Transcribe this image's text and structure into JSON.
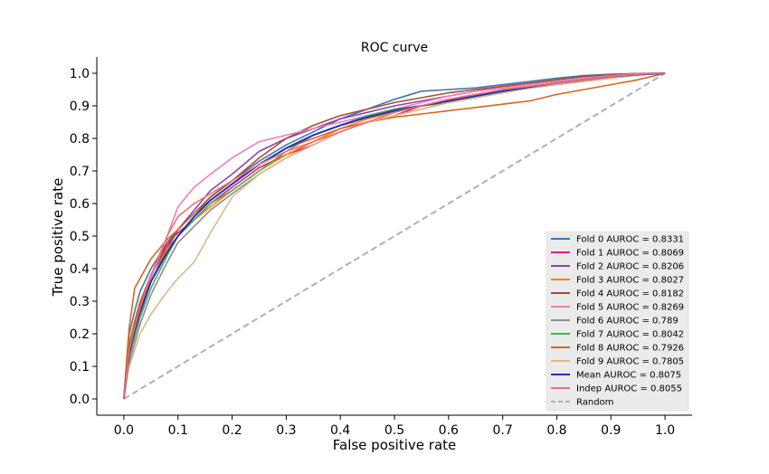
{
  "chart_data": {
    "type": "line",
    "title": "ROC curve",
    "xlabel": "False positive rate",
    "ylabel": "True positive rate",
    "xlim": [
      -0.05,
      1.05
    ],
    "ylim": [
      -0.05,
      1.05
    ],
    "xticks": [
      "0.0",
      "0.1",
      "0.2",
      "0.3",
      "0.4",
      "0.5",
      "0.6",
      "0.7",
      "0.8",
      "0.9",
      "1.0"
    ],
    "yticks": [
      "0.0",
      "0.1",
      "0.2",
      "0.3",
      "0.4",
      "0.5",
      "0.6",
      "0.7",
      "0.8",
      "0.9",
      "1.0"
    ],
    "grid": false,
    "legend_position": "lower-right",
    "series": [
      {
        "name": "Fold 0 AUROC = 0.8331",
        "color": "#3b78b0",
        "dashed": false,
        "x": [
          0,
          0.005,
          0.01,
          0.02,
          0.03,
          0.05,
          0.08,
          0.1,
          0.13,
          0.16,
          0.2,
          0.25,
          0.3,
          0.35,
          0.4,
          0.45,
          0.5,
          0.55,
          0.6,
          0.65,
          0.7,
          0.75,
          0.8,
          0.85,
          0.9,
          0.95,
          1.0
        ],
        "y": [
          0,
          0.1,
          0.2,
          0.27,
          0.33,
          0.4,
          0.48,
          0.52,
          0.57,
          0.62,
          0.67,
          0.73,
          0.78,
          0.82,
          0.86,
          0.89,
          0.92,
          0.945,
          0.95,
          0.955,
          0.965,
          0.975,
          0.985,
          0.993,
          0.997,
          0.999,
          1.0
        ]
      },
      {
        "name": "Fold 1 AUROC = 0.8069",
        "color": "#e6197d",
        "dashed": false,
        "x": [
          0,
          0.005,
          0.01,
          0.02,
          0.03,
          0.05,
          0.08,
          0.1,
          0.13,
          0.16,
          0.2,
          0.25,
          0.3,
          0.35,
          0.4,
          0.45,
          0.5,
          0.55,
          0.6,
          0.65,
          0.7,
          0.75,
          0.8,
          0.85,
          0.9,
          0.95,
          1.0
        ],
        "y": [
          0,
          0.09,
          0.15,
          0.22,
          0.28,
          0.38,
          0.48,
          0.51,
          0.55,
          0.6,
          0.65,
          0.71,
          0.75,
          0.78,
          0.82,
          0.85,
          0.87,
          0.9,
          0.92,
          0.935,
          0.95,
          0.96,
          0.97,
          0.98,
          0.99,
          0.997,
          1.0
        ]
      },
      {
        "name": "Fold 2 AUROC = 0.8206",
        "color": "#8e44ad",
        "dashed": false,
        "x": [
          0,
          0.005,
          0.01,
          0.02,
          0.03,
          0.05,
          0.08,
          0.1,
          0.13,
          0.16,
          0.2,
          0.25,
          0.3,
          0.35,
          0.4,
          0.45,
          0.5,
          0.55,
          0.6,
          0.65,
          0.7,
          0.75,
          0.8,
          0.85,
          0.9,
          0.95,
          1.0
        ],
        "y": [
          0,
          0.08,
          0.14,
          0.2,
          0.26,
          0.36,
          0.46,
          0.52,
          0.58,
          0.64,
          0.69,
          0.76,
          0.8,
          0.83,
          0.86,
          0.88,
          0.9,
          0.915,
          0.93,
          0.945,
          0.96,
          0.97,
          0.98,
          0.99,
          0.995,
          0.999,
          1.0
        ]
      },
      {
        "name": "Fold 3 AUROC = 0.8027",
        "color": "#ff7f0e",
        "dashed": false,
        "x": [
          0,
          0.005,
          0.01,
          0.02,
          0.03,
          0.05,
          0.08,
          0.1,
          0.13,
          0.16,
          0.2,
          0.25,
          0.3,
          0.35,
          0.4,
          0.45,
          0.5,
          0.55,
          0.6,
          0.65,
          0.7,
          0.75,
          0.8,
          0.85,
          0.9,
          0.95,
          1.0
        ],
        "y": [
          0,
          0.1,
          0.17,
          0.24,
          0.3,
          0.38,
          0.46,
          0.5,
          0.55,
          0.59,
          0.64,
          0.7,
          0.75,
          0.79,
          0.83,
          0.86,
          0.88,
          0.9,
          0.92,
          0.935,
          0.95,
          0.96,
          0.97,
          0.98,
          0.99,
          0.997,
          1.0
        ]
      },
      {
        "name": "Fold 4 AUROC = 0.8182",
        "color": "#a0522d",
        "dashed": false,
        "x": [
          0,
          0.005,
          0.01,
          0.02,
          0.03,
          0.05,
          0.08,
          0.1,
          0.13,
          0.16,
          0.2,
          0.25,
          0.3,
          0.35,
          0.4,
          0.45,
          0.5,
          0.55,
          0.6,
          0.65,
          0.7,
          0.75,
          0.8,
          0.85,
          0.9,
          0.95,
          1.0
        ],
        "y": [
          0,
          0.09,
          0.16,
          0.23,
          0.29,
          0.38,
          0.47,
          0.52,
          0.57,
          0.62,
          0.67,
          0.74,
          0.8,
          0.84,
          0.87,
          0.89,
          0.91,
          0.925,
          0.94,
          0.95,
          0.96,
          0.97,
          0.98,
          0.99,
          0.995,
          0.999,
          1.0
        ]
      },
      {
        "name": "Fold 5 AUROC = 0.8269",
        "color": "#f07cc4",
        "dashed": false,
        "x": [
          0,
          0.005,
          0.01,
          0.02,
          0.03,
          0.05,
          0.08,
          0.1,
          0.13,
          0.16,
          0.2,
          0.25,
          0.3,
          0.35,
          0.4,
          0.45,
          0.5,
          0.55,
          0.6,
          0.65,
          0.7,
          0.75,
          0.8,
          0.85,
          0.9,
          0.95,
          1.0
        ],
        "y": [
          0,
          0.07,
          0.13,
          0.2,
          0.27,
          0.37,
          0.5,
          0.59,
          0.65,
          0.69,
          0.74,
          0.79,
          0.81,
          0.83,
          0.85,
          0.87,
          0.89,
          0.91,
          0.93,
          0.945,
          0.955,
          0.965,
          0.975,
          0.985,
          0.993,
          0.998,
          1.0
        ]
      },
      {
        "name": "Fold 6 AUROC = 0.789",
        "color": "#8c8c8c",
        "dashed": false,
        "x": [
          0,
          0.005,
          0.01,
          0.02,
          0.03,
          0.05,
          0.08,
          0.1,
          0.13,
          0.16,
          0.2,
          0.25,
          0.3,
          0.35,
          0.4,
          0.45,
          0.5,
          0.55,
          0.6,
          0.65,
          0.7,
          0.75,
          0.8,
          0.85,
          0.9,
          0.95,
          1.0
        ],
        "y": [
          0,
          0.06,
          0.11,
          0.17,
          0.23,
          0.32,
          0.42,
          0.48,
          0.53,
          0.58,
          0.63,
          0.69,
          0.74,
          0.78,
          0.82,
          0.85,
          0.87,
          0.89,
          0.91,
          0.925,
          0.94,
          0.955,
          0.965,
          0.975,
          0.985,
          0.995,
          1.0
        ]
      },
      {
        "name": "Fold 7 AUROC = 0.8042",
        "color": "#4caf50",
        "dashed": false,
        "x": [
          0,
          0.005,
          0.01,
          0.02,
          0.03,
          0.05,
          0.08,
          0.1,
          0.13,
          0.16,
          0.2,
          0.25,
          0.3,
          0.35,
          0.4,
          0.45,
          0.5,
          0.55,
          0.6,
          0.65,
          0.7,
          0.75,
          0.8,
          0.85,
          0.9,
          0.95,
          1.0
        ],
        "y": [
          0,
          0.07,
          0.13,
          0.19,
          0.25,
          0.34,
          0.44,
          0.5,
          0.55,
          0.6,
          0.64,
          0.7,
          0.76,
          0.81,
          0.84,
          0.87,
          0.89,
          0.9,
          0.91,
          0.925,
          0.94,
          0.955,
          0.965,
          0.975,
          0.985,
          0.995,
          1.0
        ]
      },
      {
        "name": "Fold 8 AUROC = 0.7926",
        "color": "#d2691e",
        "dashed": false,
        "x": [
          0,
          0.005,
          0.01,
          0.02,
          0.03,
          0.05,
          0.08,
          0.1,
          0.13,
          0.16,
          0.2,
          0.25,
          0.3,
          0.35,
          0.4,
          0.45,
          0.5,
          0.55,
          0.6,
          0.65,
          0.7,
          0.75,
          0.8,
          0.85,
          0.9,
          0.95,
          1.0
        ],
        "y": [
          0,
          0.12,
          0.22,
          0.34,
          0.37,
          0.43,
          0.49,
          0.52,
          0.57,
          0.61,
          0.66,
          0.72,
          0.77,
          0.8,
          0.83,
          0.85,
          0.865,
          0.875,
          0.885,
          0.895,
          0.905,
          0.915,
          0.935,
          0.95,
          0.965,
          0.98,
          1.0
        ]
      },
      {
        "name": "Fold 9 AUROC = 0.7805",
        "color": "#deb887",
        "dashed": false,
        "x": [
          0,
          0.005,
          0.01,
          0.02,
          0.03,
          0.05,
          0.08,
          0.1,
          0.13,
          0.16,
          0.2,
          0.25,
          0.3,
          0.35,
          0.4,
          0.45,
          0.5,
          0.55,
          0.6,
          0.65,
          0.7,
          0.75,
          0.8,
          0.85,
          0.9,
          0.95,
          1.0
        ],
        "y": [
          0,
          0.05,
          0.1,
          0.15,
          0.2,
          0.26,
          0.33,
          0.37,
          0.42,
          0.51,
          0.62,
          0.69,
          0.74,
          0.78,
          0.82,
          0.85,
          0.87,
          0.89,
          0.91,
          0.925,
          0.94,
          0.955,
          0.965,
          0.975,
          0.985,
          0.995,
          1.0
        ]
      },
      {
        "name": "Mean AUROC = 0.8075",
        "color": "#1f2fbf",
        "dashed": false,
        "x": [
          0,
          0.005,
          0.01,
          0.02,
          0.03,
          0.05,
          0.08,
          0.1,
          0.13,
          0.16,
          0.2,
          0.25,
          0.3,
          0.35,
          0.4,
          0.45,
          0.5,
          0.55,
          0.6,
          0.65,
          0.7,
          0.75,
          0.8,
          0.85,
          0.9,
          0.95,
          1.0
        ],
        "y": [
          0,
          0.08,
          0.14,
          0.21,
          0.27,
          0.36,
          0.45,
          0.5,
          0.56,
          0.61,
          0.66,
          0.72,
          0.77,
          0.81,
          0.84,
          0.865,
          0.885,
          0.9,
          0.915,
          0.93,
          0.945,
          0.958,
          0.97,
          0.98,
          0.99,
          0.996,
          1.0
        ]
      },
      {
        "name": "Indep AUROC = 0.8055",
        "color": "#f07070",
        "dashed": false,
        "x": [
          0,
          0.005,
          0.01,
          0.02,
          0.03,
          0.05,
          0.08,
          0.1,
          0.13,
          0.16,
          0.2,
          0.25,
          0.3,
          0.35,
          0.4,
          0.45,
          0.5,
          0.55,
          0.6,
          0.65,
          0.7,
          0.75,
          0.8,
          0.85,
          0.9,
          0.95,
          1.0
        ],
        "y": [
          0,
          0.08,
          0.15,
          0.22,
          0.28,
          0.38,
          0.5,
          0.56,
          0.6,
          0.63,
          0.67,
          0.72,
          0.76,
          0.79,
          0.82,
          0.85,
          0.88,
          0.9,
          0.92,
          0.935,
          0.95,
          0.96,
          0.97,
          0.98,
          0.99,
          0.997,
          1.0
        ]
      },
      {
        "name": "Random",
        "color": "#b0b0b0",
        "dashed": true,
        "x": [
          0,
          1.0
        ],
        "y": [
          0,
          1.0
        ]
      }
    ]
  }
}
